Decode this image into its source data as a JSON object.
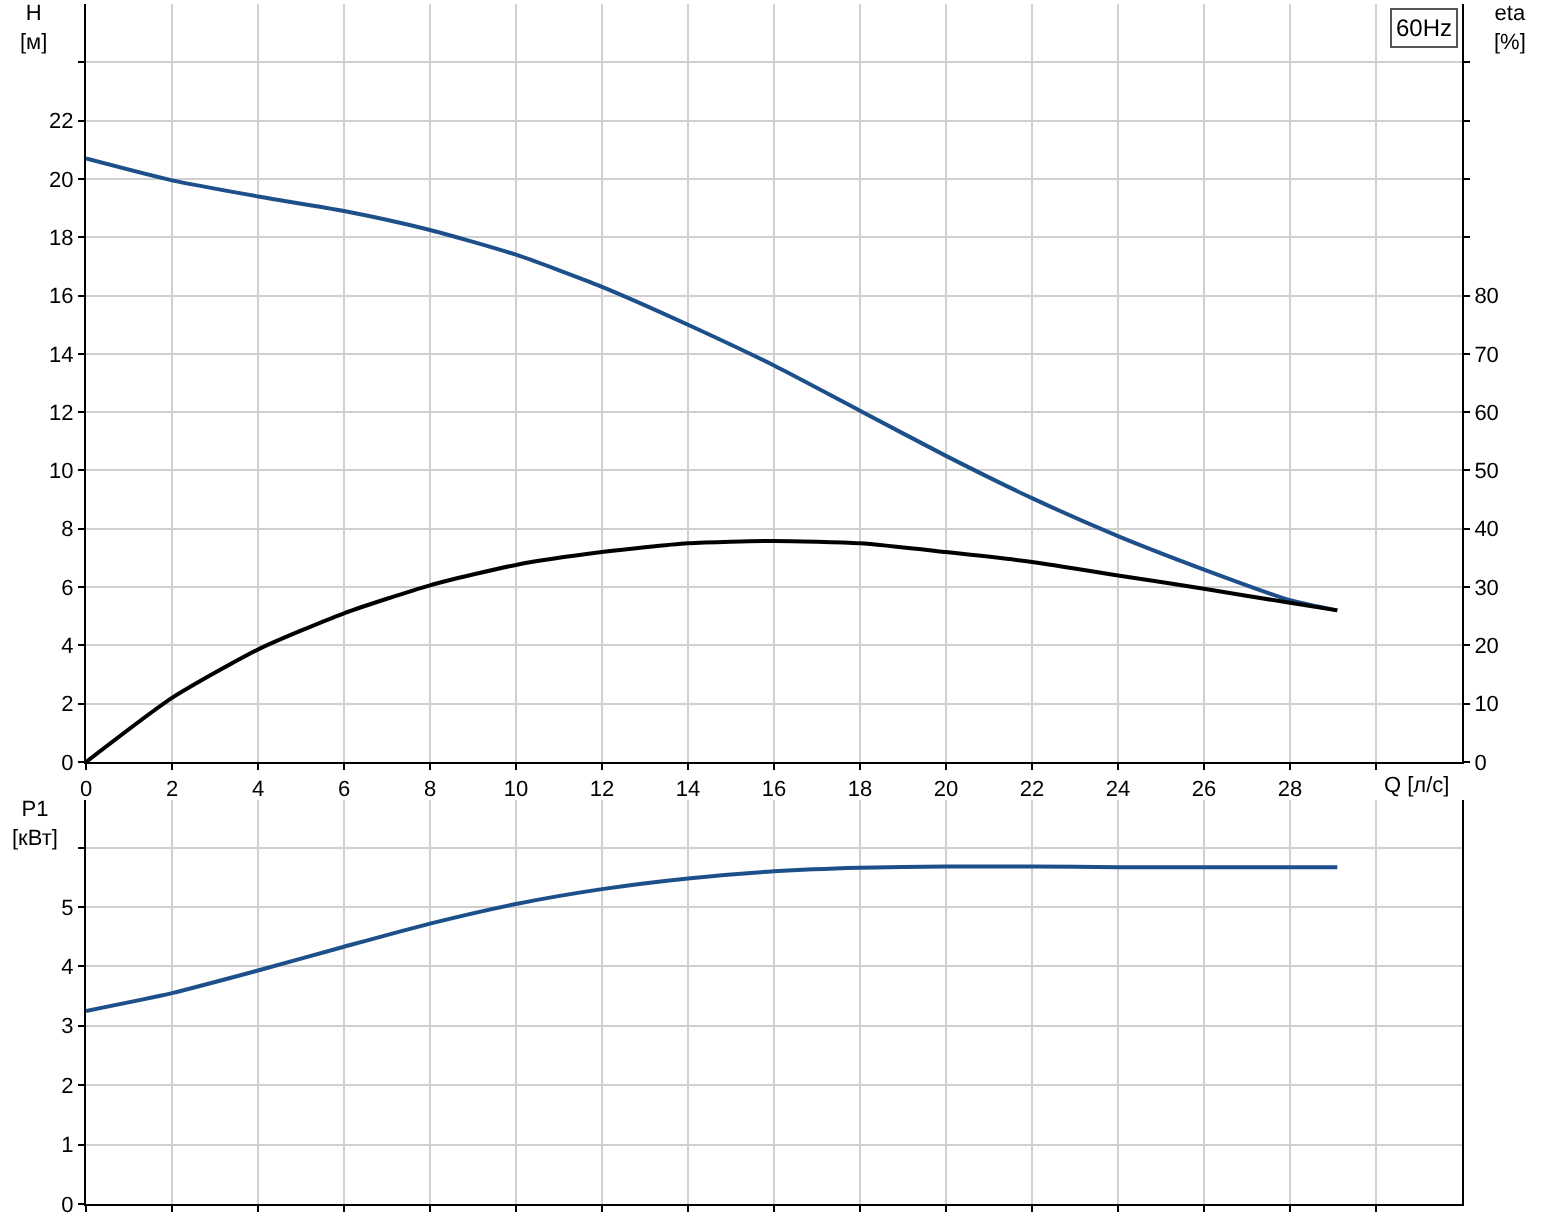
{
  "chart_data": [
    {
      "type": "line",
      "xlabel": "Q [л/с]",
      "ylabel": "H\n[м]",
      "y2label": "eta\n[%]",
      "annotations": [
        "60Hz"
      ],
      "x": [
        0,
        2,
        4,
        6,
        8,
        10,
        12,
        14,
        16,
        18,
        20,
        22,
        24,
        26,
        28,
        29.1
      ],
      "series": [
        {
          "color": "#1d4f8a",
          "values": [
            20.7,
            19.95,
            19.4,
            18.9,
            18.25,
            17.4,
            16.3,
            15.0,
            13.6,
            12.05,
            10.5,
            9.05,
            7.75,
            6.6,
            5.55,
            5.2
          ]
        },
        {
          "color": "#000000",
          "axis": "y2",
          "values": [
            0,
            11,
            19.3,
            25.5,
            30.3,
            33.8,
            36,
            37.5,
            37.9,
            37.5,
            36,
            34.3,
            32,
            29.7,
            27.3,
            26
          ]
        }
      ],
      "xlim": [
        0,
        32
      ],
      "xticks": [
        0,
        2,
        4,
        6,
        8,
        10,
        12,
        14,
        16,
        18,
        20,
        22,
        24,
        26,
        28,
        {
          "value": 30,
          "label": null
        }
      ],
      "ylim": [
        0,
        26
      ],
      "yticks": [
        0,
        2,
        4,
        6,
        8,
        10,
        12,
        14,
        16,
        18,
        20,
        22,
        {
          "value": 24,
          "label": null
        }
      ],
      "y2lim": [
        0,
        130
      ],
      "y2ticks": [
        0,
        10,
        20,
        30,
        40,
        50,
        60,
        70,
        80,
        {
          "value": 90,
          "label": null
        },
        {
          "value": 100,
          "label": null
        },
        {
          "value": 110,
          "label": null
        },
        {
          "value": 120,
          "label": null
        }
      ],
      "grid": true,
      "marker": "none",
      "line_style": "solid"
    },
    {
      "type": "line",
      "ylabel": "P1\n[кВт]",
      "x": [
        0,
        2,
        4,
        6,
        8,
        10,
        12,
        14,
        16,
        18,
        20,
        22,
        24,
        26,
        28,
        29.1
      ],
      "series": [
        {
          "color": "#1d4f8a",
          "values": [
            3.25,
            3.55,
            3.93,
            4.33,
            4.72,
            5.05,
            5.3,
            5.48,
            5.6,
            5.66,
            5.68,
            5.68,
            5.67,
            5.67,
            5.67,
            5.67
          ]
        }
      ],
      "xlim": [
        0,
        32
      ],
      "xticks": [
        0,
        2,
        4,
        6,
        8,
        10,
        12,
        14,
        16,
        18,
        20,
        22,
        24,
        26,
        28,
        30
      ],
      "ylim": [
        0,
        6.8
      ],
      "yticks": [
        0,
        1,
        2,
        3,
        4,
        5,
        {
          "value": 6,
          "label": null
        }
      ],
      "tick_labels": "y",
      "grid": true,
      "marker": "none",
      "line_style": "solid"
    }
  ]
}
